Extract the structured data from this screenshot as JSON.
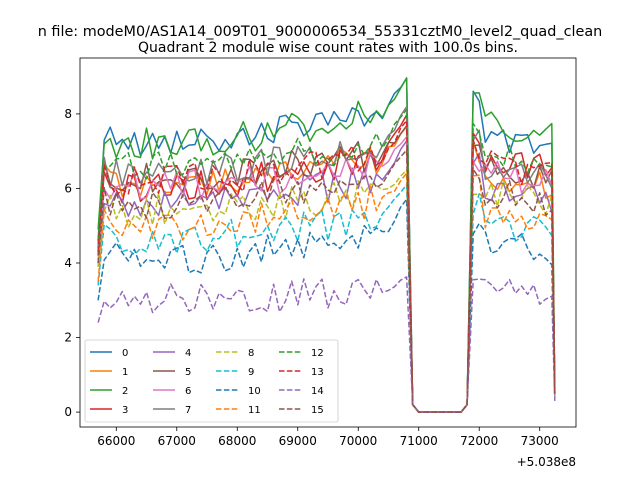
{
  "chart_data": {
    "type": "line",
    "suptitle": "n file: modeM0/AS1A14_009T01_9000006534_55331cztM0_level2_quad_clean",
    "title": "Quadrant 2 module wise count rates with 100.0s bins.",
    "xlabel": "",
    "ylabel": "",
    "x_offset_label": "+5.038e8",
    "xlim": [
      65400,
      73600
    ],
    "ylim": [
      -0.4,
      9.5
    ],
    "xticks": [
      66000,
      67000,
      68000,
      69000,
      70000,
      71000,
      72000,
      73000
    ],
    "xtick_labels": [
      "66000",
      "67000",
      "68000",
      "69000",
      "70000",
      "71000",
      "72000",
      "73000"
    ],
    "yticks": [
      0,
      2,
      4,
      6,
      8
    ],
    "ytick_labels": [
      "0",
      "2",
      "4",
      "6",
      "8"
    ],
    "grid": false,
    "legend": "lower-left",
    "segments": [
      {
        "x_start": 65700,
        "x_end": 70800,
        "step": 100
      },
      {
        "x_start": 70800,
        "x_end": 71800,
        "step": 100
      },
      {
        "x_start": 71800,
        "x_end": 73200,
        "step": 100
      },
      {
        "x_start": 73200,
        "x_end": 73250,
        "step": 50
      }
    ],
    "series": [
      {
        "name": "0",
        "color": "#1f77b4",
        "dash": "solid",
        "levels": [
          4.6,
          7.3,
          9.0,
          7.1,
          0.5
        ]
      },
      {
        "name": "1",
        "color": "#ff7f0e",
        "dash": "solid",
        "levels": [
          4.0,
          6.2,
          7.6,
          6.0,
          0.5
        ]
      },
      {
        "name": "2",
        "color": "#2ca02c",
        "dash": "solid",
        "levels": [
          4.9,
          7.2,
          9.1,
          7.4,
          0.6
        ]
      },
      {
        "name": "3",
        "color": "#d62728",
        "dash": "solid",
        "levels": [
          4.2,
          6.0,
          8.0,
          6.5,
          0.5
        ]
      },
      {
        "name": "4",
        "color": "#9467bd",
        "dash": "solid",
        "levels": [
          3.9,
          5.6,
          7.2,
          5.6,
          0.4
        ]
      },
      {
        "name": "5",
        "color": "#8c564b",
        "dash": "solid",
        "levels": [
          4.5,
          6.3,
          7.8,
          6.2,
          0.5
        ]
      },
      {
        "name": "6",
        "color": "#e377c2",
        "dash": "solid",
        "levels": [
          4.3,
          6.0,
          7.4,
          6.1,
          0.5
        ]
      },
      {
        "name": "7",
        "color": "#7f7f7f",
        "dash": "solid",
        "levels": [
          4.4,
          6.4,
          8.1,
          6.3,
          0.5
        ]
      },
      {
        "name": "8",
        "color": "#bcbd22",
        "dash": "dashed",
        "levels": [
          3.9,
          5.4,
          6.6,
          5.6,
          0.4
        ]
      },
      {
        "name": "9",
        "color": "#17becf",
        "dash": "dashed",
        "levels": [
          3.4,
          4.6,
          6.1,
          4.8,
          0.4
        ]
      },
      {
        "name": "10",
        "color": "#1f77b4",
        "dash": "dashed",
        "levels": [
          3.0,
          4.1,
          5.6,
          4.3,
          0.4
        ]
      },
      {
        "name": "11",
        "color": "#ff7f0e",
        "dash": "dashed",
        "levels": [
          3.5,
          5.0,
          6.5,
          5.0,
          0.4
        ]
      },
      {
        "name": "12",
        "color": "#2ca02c",
        "dash": "dashed",
        "levels": [
          4.6,
          6.6,
          8.1,
          6.7,
          0.5
        ]
      },
      {
        "name": "13",
        "color": "#d62728",
        "dash": "dashed",
        "levels": [
          4.3,
          6.2,
          7.7,
          6.3,
          0.5
        ]
      },
      {
        "name": "14",
        "color": "#9467bd",
        "dash": "dashed",
        "levels": [
          2.4,
          3.0,
          3.7,
          3.0,
          0.3
        ]
      },
      {
        "name": "15",
        "color": "#8c564b",
        "dash": "dashed",
        "levels": [
          4.0,
          5.6,
          7.0,
          5.6,
          0.5
        ]
      }
    ]
  }
}
